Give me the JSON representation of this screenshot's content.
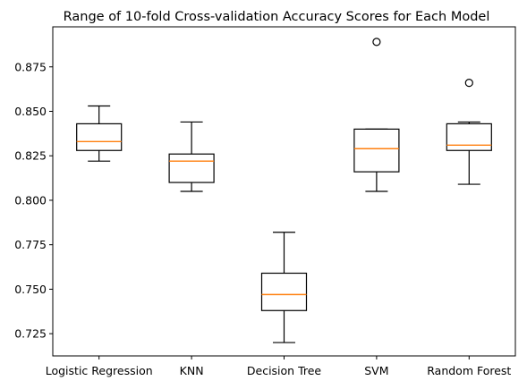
{
  "chart_data": {
    "type": "boxplot",
    "title": "Range of 10-fold Cross-validation Accuracy Scores for Each Model",
    "xlabel": "",
    "ylabel": "",
    "ylim": [
      0.7125,
      0.8975
    ],
    "y_ticks": [
      0.725,
      0.75,
      0.775,
      0.8,
      0.825,
      0.85,
      0.875
    ],
    "y_tick_labels": [
      "0.725",
      "0.750",
      "0.775",
      "0.800",
      "0.825",
      "0.850",
      "0.875"
    ],
    "grid": false,
    "colors": {
      "box": "#000000",
      "median": "#ff7f0e",
      "flier": "#000000"
    },
    "categories": [
      "Logistic Regression",
      "KNN",
      "Decision Tree",
      "SVM",
      "Random Forest"
    ],
    "boxes": [
      {
        "category": "Logistic Regression",
        "whisker_low": 0.822,
        "q1": 0.828,
        "median": 0.833,
        "q3": 0.843,
        "whisker_high": 0.853,
        "fliers": []
      },
      {
        "category": "KNN",
        "whisker_low": 0.805,
        "q1": 0.81,
        "median": 0.822,
        "q3": 0.826,
        "whisker_high": 0.844,
        "fliers": []
      },
      {
        "category": "Decision Tree",
        "whisker_low": 0.72,
        "q1": 0.738,
        "median": 0.747,
        "q3": 0.759,
        "whisker_high": 0.782,
        "fliers": []
      },
      {
        "category": "SVM",
        "whisker_low": 0.805,
        "q1": 0.816,
        "median": 0.829,
        "q3": 0.84,
        "whisker_high": 0.84,
        "fliers": [
          0.889
        ]
      },
      {
        "category": "Random Forest",
        "whisker_low": 0.809,
        "q1": 0.828,
        "median": 0.831,
        "q3": 0.843,
        "whisker_high": 0.844,
        "fliers": [
          0.866
        ]
      }
    ]
  }
}
